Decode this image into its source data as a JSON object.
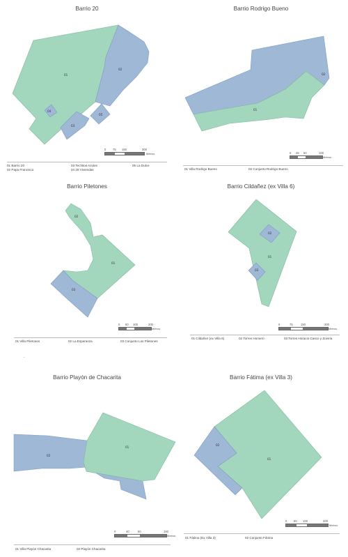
{
  "panels": {
    "barrio20": {
      "title": "Barrio 20",
      "polygon_labels": [
        "01",
        "02",
        "03",
        "04",
        "05"
      ],
      "scale": {
        "ticks": [
          "0",
          "75",
          "150",
          "300"
        ],
        "unit": "Metros"
      },
      "legend": [
        "01  Barrio 20",
        "02  Papa Francisco",
        "03  Techitos Azules",
        "04  28 Viviendas",
        "05  La Dulce"
      ],
      "colors": {
        "green": "#a3d7bd",
        "blue": "#9eb8d6"
      }
    },
    "rodrigo": {
      "title": "Barrio Rodrigo Bueno",
      "polygon_labels": [
        "01",
        "02"
      ],
      "scale": {
        "ticks": [
          "0",
          "25",
          "50",
          "100"
        ],
        "unit": "Metros"
      },
      "legend": [
        "01  Villa Rodrigo Bueno",
        "02  Conjunto Rodrigo Bueno"
      ]
    },
    "piletones": {
      "title": "Barrio Piletones",
      "polygon_labels": [
        "01",
        "02",
        "03"
      ],
      "scale": {
        "ticks": [
          "0",
          "50",
          "100",
          "200"
        ],
        "unit": "Metros"
      },
      "legend": [
        "01  Villa Piletones",
        "02  La Esperanza",
        "03  Conjunto Los Piletones"
      ]
    },
    "cildanez": {
      "title": "Barrio Cildañez (ex Villa 6)",
      "polygon_labels": [
        "01",
        "02",
        "03"
      ],
      "scale": {
        "ticks": [
          "0",
          "75",
          "150",
          "300"
        ],
        "unit": "Metros"
      },
      "legend": [
        "01  Cildañez (ex Villa 6)",
        "02  Torres Homero",
        "03  Torres Horacio Casco y Zuviría"
      ]
    },
    "playon": {
      "title": "Barrio Playón de Chacarita",
      "polygon_labels": [
        "01",
        "02"
      ],
      "scale": {
        "ticks": [
          "0",
          "40",
          "80",
          "160"
        ],
        "unit": "Metros"
      },
      "legend": [
        "01  Villa Playón Chacarita",
        "02  Playón Chacarita"
      ]
    },
    "fatima": {
      "title": "Barrio Fátima (ex Villa 3)",
      "polygon_labels": [
        "01",
        "02"
      ],
      "scale": {
        "ticks": [
          "0",
          "50",
          "100",
          "200"
        ],
        "unit": "Metros"
      },
      "legend": [
        "01  Fátima (Ex Villa 3)",
        "02  Conjunto Fátima"
      ]
    }
  },
  "stray_mark": "."
}
